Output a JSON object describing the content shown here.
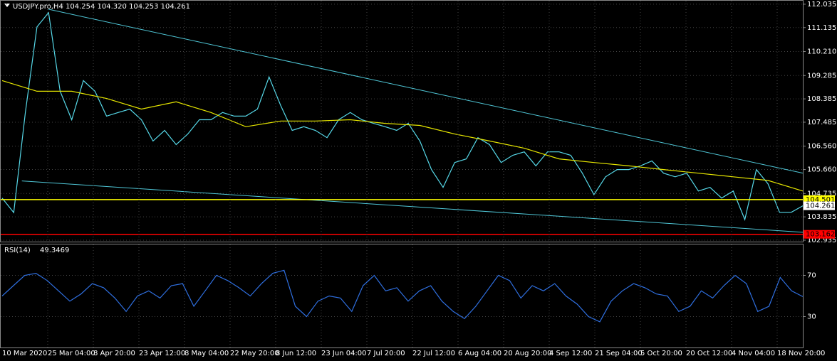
{
  "chart_data": [
    {
      "type": "line",
      "title": "USDJPY.pro,H4",
      "ohlc_text": "104.254 104.320 104.253 104.261",
      "series": [
        {
          "name": "USDJPY",
          "color": "#56d8e8",
          "values": [
            104.56,
            104.0,
            107.86,
            111.16,
            111.71,
            108.68,
            107.58,
            109.09,
            108.68,
            107.72,
            107.86,
            107.99,
            107.58,
            106.76,
            107.17,
            106.62,
            107.03,
            107.58,
            107.58,
            107.86,
            107.72,
            107.72,
            107.99,
            109.23,
            108.13,
            107.17,
            107.31,
            107.17,
            106.89,
            107.58,
            107.86,
            107.58,
            107.44,
            107.31,
            107.17,
            107.44,
            106.76,
            105.66,
            104.97,
            105.93,
            106.07,
            106.89,
            106.62,
            105.93,
            106.21,
            106.34,
            105.8,
            106.34,
            106.34,
            106.21,
            105.52,
            104.69,
            105.38,
            105.66,
            105.66,
            105.8,
            105.99,
            105.52,
            105.38,
            105.52,
            104.83,
            104.97,
            104.56,
            104.83,
            103.73,
            105.66,
            105.11,
            104.01,
            104.01,
            104.26
          ]
        },
        {
          "name": "MA",
          "color": "#e6e600",
          "values": [
            109.09,
            108.68,
            108.68,
            108.4,
            107.99,
            108.27,
            107.86,
            107.31,
            107.53,
            107.53,
            107.58,
            107.44,
            107.36,
            107.03,
            106.76,
            106.48,
            106.07,
            105.93,
            105.8,
            105.66,
            105.52,
            105.38,
            105.24,
            104.83
          ]
        }
      ],
      "ylim": [
        102.88,
        112.17
      ],
      "yticks": [
        112.035,
        111.135,
        {
          "value": 110.21,
          "label": "110.210"
        },
        109.285,
        108.385,
        107.485,
        {
          "value": 106.56,
          "label": "106.560"
        },
        {
          "value": 105.66,
          "label": "105.660"
        },
        104.735,
        103.835,
        102.935
      ],
      "grid": true,
      "levels": [
        {
          "value": 104.501,
          "color": "#ffff00"
        },
        {
          "value": 103.162,
          "color": "#ff0000"
        }
      ],
      "last_price": 104.261,
      "trendlines": [
        {
          "color": "#4fc6d6",
          "points": [
            [
              4,
              111.84
            ],
            [
              69,
              105.52
            ]
          ]
        },
        {
          "color": "#4fc6d6",
          "points": [
            [
              1.7,
              105.22
            ],
            [
              69,
              103.24
            ]
          ]
        }
      ],
      "x_labels": [
        "10 Mar 2020",
        "25 Mar 04:00",
        "8 Apr 20:00",
        "23 Apr 12:00",
        "8 May 04:00",
        "22 May 20:00",
        "8 Jun 12:00",
        "23 Jun 04:00",
        "7 Jul 20:00",
        "22 Jul 12:00",
        "6 Aug 04:00",
        "20 Aug 20:00",
        "4 Sep 12:00",
        "21 Sep 04:00",
        "5 Oct 20:00",
        "20 Oct 12:00",
        "4 Nov 04:00",
        "18 Nov 20:00"
      ]
    },
    {
      "type": "line",
      "title": "RSI(14)",
      "last_value": 49.3469,
      "series": [
        {
          "name": "RSI",
          "color": "#2f6fe0",
          "values": [
            50,
            60,
            70,
            72,
            65,
            55,
            45,
            52,
            62,
            58,
            48,
            35,
            50,
            55,
            48,
            60,
            62,
            40,
            55,
            70,
            65,
            58,
            50,
            62,
            72,
            75,
            40,
            30,
            45,
            50,
            48,
            35,
            60,
            70,
            55,
            58,
            45,
            55,
            60,
            45,
            35,
            28,
            40,
            55,
            70,
            65,
            48,
            60,
            55,
            62,
            50,
            42,
            30,
            25,
            45,
            55,
            62,
            58,
            52,
            50,
            35,
            40,
            55,
            48,
            60,
            70,
            62,
            35,
            40,
            68,
            55,
            49.3469
          ]
        }
      ],
      "ylim": [
        0,
        100
      ],
      "yticks": [
        30,
        70
      ],
      "grid": true
    }
  ]
}
